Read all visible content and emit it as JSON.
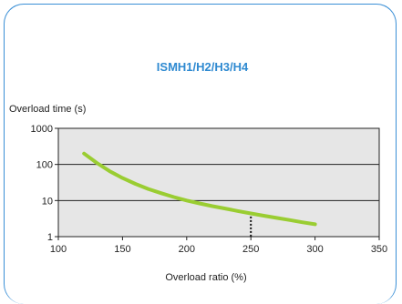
{
  "chart_data": {
    "type": "line",
    "title": "ISMH1/H2/H3/H4",
    "xlabel": "Overload ratio (%)",
    "ylabel": "Overload time (s)",
    "x_ticks": [
      "100",
      "150",
      "200",
      "250",
      "300",
      "350"
    ],
    "y_ticks": [
      "1",
      "10",
      "100",
      "1000"
    ],
    "xlim": [
      100,
      350
    ],
    "ylim": [
      1,
      1000
    ],
    "y_scale": "log",
    "grid": "horizontal",
    "series": [
      {
        "x": [
          120,
          130,
          140,
          150,
          160,
          170,
          180,
          190,
          200,
          210,
          220,
          230,
          240,
          250,
          260,
          270,
          280,
          290,
          300
        ],
        "y": [
          200,
          110,
          65,
          42,
          29,
          21,
          16,
          12.5,
          10,
          8.3,
          7,
          6,
          5.1,
          4.4,
          3.8,
          3.3,
          2.9,
          2.5,
          2.2
        ]
      }
    ],
    "marker_line": {
      "x": 250
    },
    "colors": {
      "line": "#9acd32",
      "plot_bg": "#e6e6e6",
      "grid": "#222222",
      "title": "#2f8ad1",
      "border": "#3a8fd6"
    }
  }
}
